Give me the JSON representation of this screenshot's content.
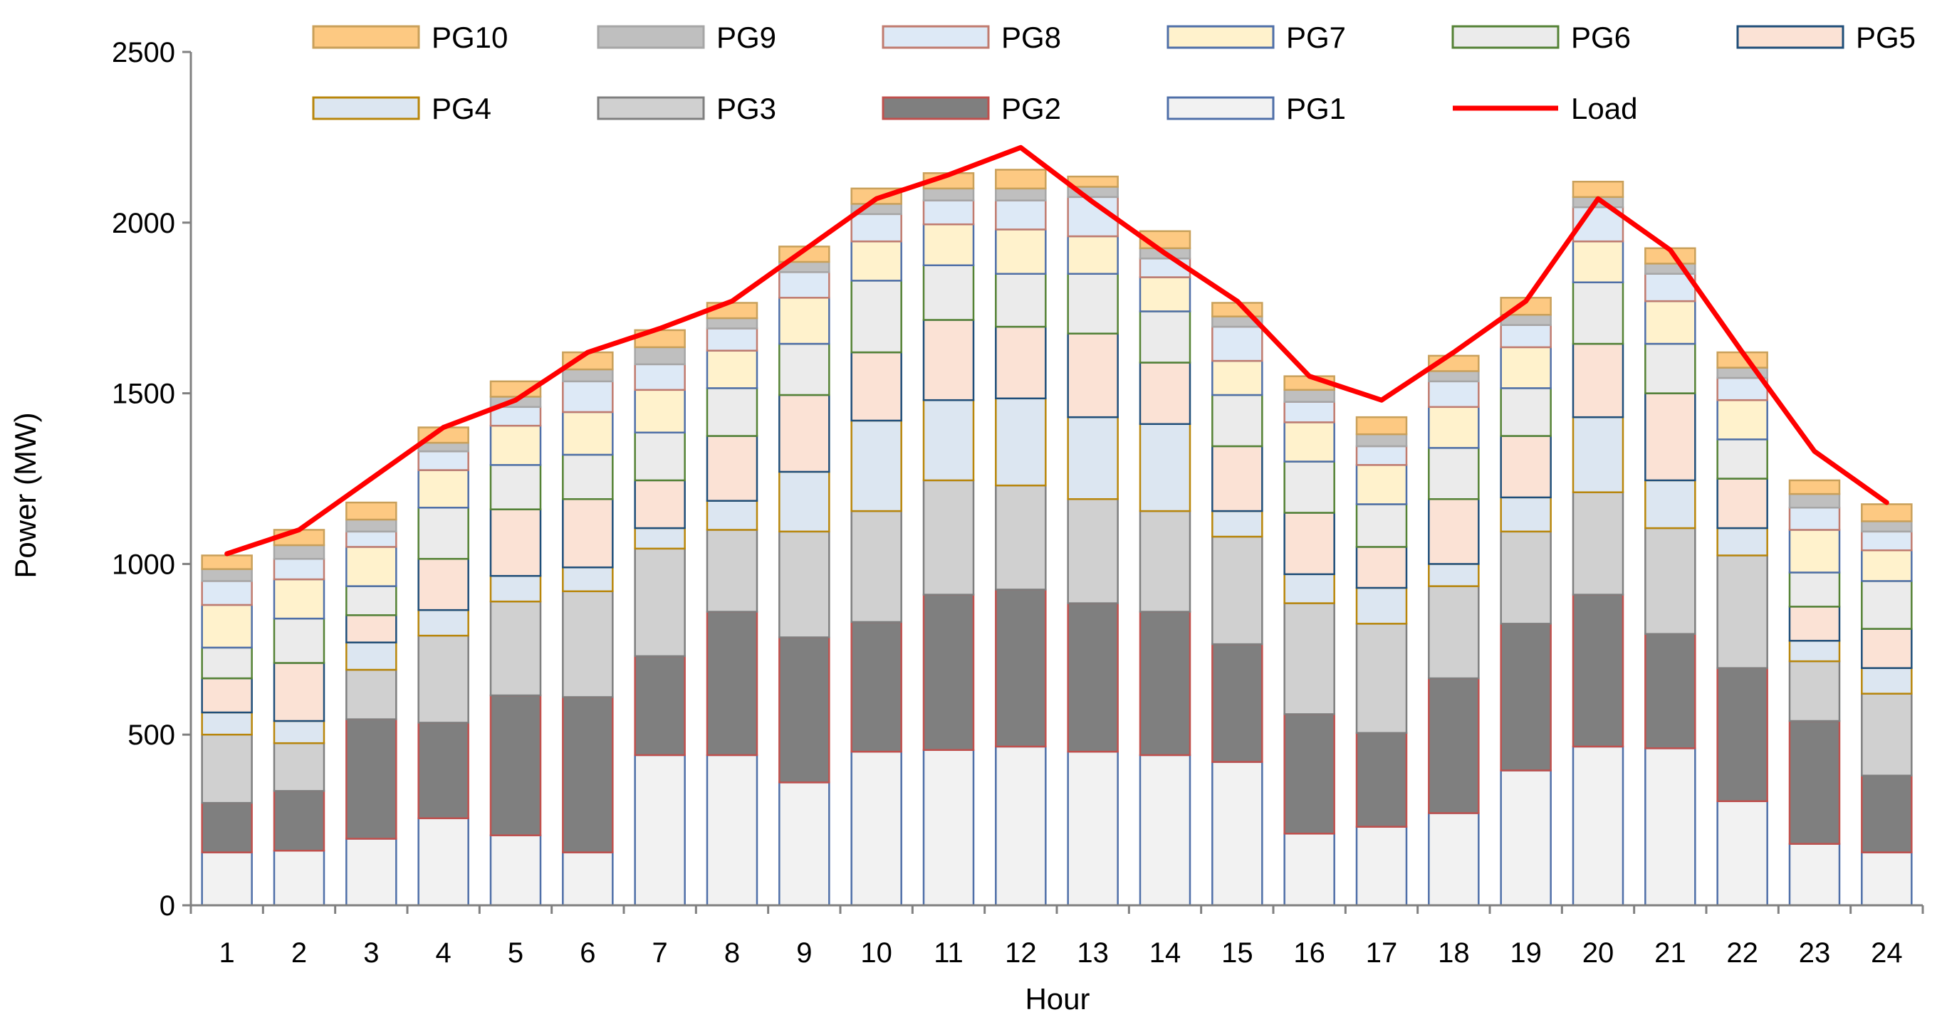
{
  "chart_data": {
    "type": "bar",
    "stacked": true,
    "title": "",
    "xlabel": "Hour",
    "ylabel": "Power (MW)",
    "ylim": [
      0,
      2500
    ],
    "yticks": [
      0,
      500,
      1000,
      1500,
      2000,
      2500
    ],
    "grid": false,
    "legend_position": "top",
    "categories": [
      "1",
      "2",
      "3",
      "4",
      "5",
      "6",
      "7",
      "8",
      "9",
      "10",
      "11",
      "12",
      "13",
      "14",
      "15",
      "16",
      "17",
      "18",
      "19",
      "20",
      "21",
      "22",
      "23",
      "24"
    ],
    "series": [
      {
        "name": "PG1",
        "fill": "#f2f2f2",
        "stroke": "#4f6fa8",
        "values": [
          155,
          160,
          195,
          255,
          205,
          155,
          440,
          440,
          360,
          450,
          455,
          465,
          450,
          440,
          420,
          210,
          230,
          270,
          395,
          465,
          460,
          305,
          180,
          155
        ]
      },
      {
        "name": "PG2",
        "fill": "#7f7f7f",
        "stroke": "#c0504d",
        "values": [
          145,
          175,
          350,
          280,
          410,
          455,
          290,
          420,
          425,
          380,
          455,
          460,
          435,
          420,
          345,
          350,
          275,
          395,
          430,
          445,
          335,
          390,
          360,
          225
        ]
      },
      {
        "name": "PG3",
        "fill": "#d0d0d0",
        "stroke": "#7f7f7f",
        "values": [
          200,
          140,
          145,
          255,
          275,
          310,
          315,
          240,
          310,
          325,
          335,
          305,
          305,
          295,
          315,
          325,
          320,
          270,
          270,
          300,
          310,
          330,
          175,
          240
        ]
      },
      {
        "name": "PG4",
        "fill": "#dce6f1",
        "stroke": "#b8860b",
        "values": [
          65,
          65,
          80,
          75,
          75,
          70,
          60,
          85,
          175,
          265,
          235,
          255,
          240,
          255,
          75,
          85,
          105,
          65,
          100,
          220,
          140,
          80,
          60,
          75
        ]
      },
      {
        "name": "PG5",
        "fill": "#fbe2d5",
        "stroke": "#1f4e79",
        "values": [
          100,
          170,
          80,
          150,
          195,
          200,
          140,
          190,
          225,
          200,
          235,
          210,
          245,
          180,
          190,
          180,
          120,
          190,
          180,
          215,
          255,
          145,
          100,
          115
        ]
      },
      {
        "name": "PG6",
        "fill": "#ebebeb",
        "stroke": "#548235",
        "values": [
          90,
          130,
          85,
          150,
          130,
          130,
          140,
          140,
          150,
          210,
          160,
          155,
          175,
          150,
          150,
          150,
          125,
          150,
          140,
          180,
          145,
          115,
          100,
          140
        ]
      },
      {
        "name": "PG7",
        "fill": "#fff2cc",
        "stroke": "#4f6fa8",
        "values": [
          125,
          115,
          115,
          110,
          115,
          125,
          125,
          110,
          135,
          115,
          120,
          130,
          110,
          100,
          100,
          115,
          115,
          120,
          120,
          120,
          125,
          115,
          125,
          90
        ]
      },
      {
        "name": "PG8",
        "fill": "#dde9f6",
        "stroke": "#c07b6f",
        "values": [
          70,
          60,
          45,
          55,
          55,
          90,
          75,
          65,
          75,
          80,
          70,
          85,
          115,
          55,
          100,
          60,
          55,
          75,
          65,
          100,
          80,
          65,
          65,
          55
        ]
      },
      {
        "name": "PG9",
        "fill": "#bfbfbf",
        "stroke": "#a6a6a6",
        "values": [
          35,
          40,
          35,
          25,
          30,
          35,
          50,
          30,
          30,
          30,
          35,
          35,
          30,
          30,
          30,
          35,
          35,
          30,
          30,
          30,
          30,
          30,
          40,
          30
        ]
      },
      {
        "name": "PG10",
        "fill": "#fdc982",
        "stroke": "#c9a05a",
        "values": [
          40,
          45,
          50,
          45,
          45,
          50,
          50,
          45,
          45,
          45,
          45,
          55,
          30,
          50,
          40,
          40,
          50,
          45,
          50,
          45,
          45,
          45,
          40,
          50
        ]
      }
    ],
    "line_series": {
      "name": "Load",
      "color": "#ff0000",
      "values": [
        1030,
        1100,
        1250,
        1400,
        1480,
        1620,
        1690,
        1770,
        1920,
        2070,
        2140,
        2220,
        2060,
        1910,
        1770,
        1550,
        1480,
        1620,
        1770,
        2070,
        1920,
        1620,
        1330,
        1180
      ]
    }
  }
}
